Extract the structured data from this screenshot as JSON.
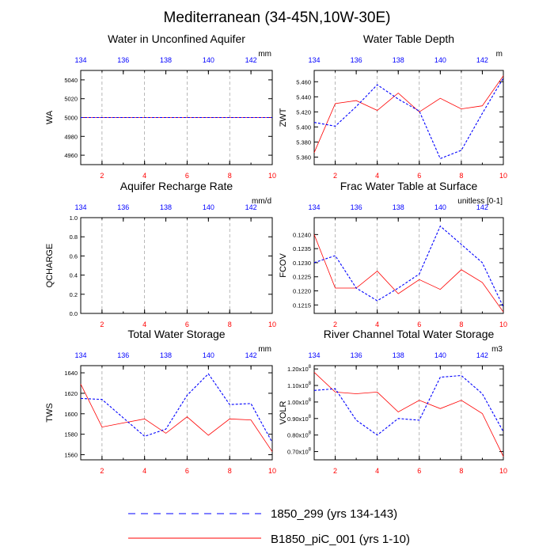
{
  "page": {
    "title": "Mediterranean (34-45N,10W-30E)",
    "colors": {
      "series_a": "#0000ff",
      "series_b": "#ff0000",
      "axis": "#000000",
      "grid": "#999999"
    }
  },
  "legend": {
    "items": [
      {
        "name": "1850_299 (yrs 134-143)",
        "color": "#0000ff",
        "style": "dashed"
      },
      {
        "name": "B1850_piC_001 (yrs 1-10)",
        "color": "#ff0000",
        "style": "solid"
      }
    ]
  },
  "chart_data": [
    {
      "type": "line",
      "title": "Water in Unconfined Aquifer",
      "ylabel": "WA",
      "units": "mm",
      "xlim": [
        1,
        10
      ],
      "x_ticks": [
        2,
        4,
        6,
        8,
        10
      ],
      "top_xlim": [
        134,
        143
      ],
      "top_ticks": [
        134,
        136,
        138,
        140,
        142
      ],
      "ylim": [
        4950,
        5050
      ],
      "y_ticks": [
        4960,
        4980,
        5000,
        5020,
        5040
      ],
      "y_tick_labels": [
        "4960",
        "4980",
        "5000",
        "5020",
        "5040"
      ],
      "x": [
        1,
        2,
        3,
        4,
        5,
        6,
        7,
        8,
        9,
        10
      ],
      "series": [
        {
          "name": "1850_299 (yrs 134-143)",
          "values": [
            5000,
            5000,
            5000,
            5000,
            5000,
            5000,
            5000,
            5000,
            5000,
            5000
          ]
        },
        {
          "name": "B1850_piC_001 (yrs 1-10)",
          "values": [
            5000,
            5000,
            5000,
            5000,
            5000,
            5000,
            5000,
            5000,
            5000,
            5000
          ]
        }
      ]
    },
    {
      "type": "line",
      "title": "Water Table Depth",
      "ylabel": "ZWT",
      "units": "m",
      "xlim": [
        1,
        10
      ],
      "x_ticks": [
        2,
        4,
        6,
        8,
        10
      ],
      "top_xlim": [
        134,
        143
      ],
      "top_ticks": [
        134,
        136,
        138,
        140,
        142
      ],
      "ylim": [
        5.35,
        5.475
      ],
      "y_ticks": [
        5.36,
        5.38,
        5.4,
        5.42,
        5.44,
        5.46
      ],
      "y_tick_labels": [
        "5.360",
        "5.380",
        "5.400",
        "5.420",
        "5.440",
        "5.460"
      ],
      "x": [
        1,
        2,
        3,
        4,
        5,
        6,
        7,
        8,
        9,
        10
      ],
      "series": [
        {
          "name": "1850_299 (yrs 134-143)",
          "values": [
            5.406,
            5.401,
            5.427,
            5.456,
            5.437,
            5.421,
            5.358,
            5.369,
            5.418,
            5.465
          ]
        },
        {
          "name": "B1850_piC_001 (yrs 1-10)",
          "values": [
            5.366,
            5.431,
            5.435,
            5.422,
            5.445,
            5.42,
            5.438,
            5.424,
            5.428,
            5.468
          ]
        }
      ]
    },
    {
      "type": "line",
      "title": "Aquifer Recharge Rate",
      "ylabel": "QCHARGE",
      "units": "mm/d",
      "xlim": [
        1,
        10
      ],
      "x_ticks": [
        2,
        4,
        6,
        8,
        10
      ],
      "top_xlim": [
        134,
        143
      ],
      "top_ticks": [
        134,
        136,
        138,
        140,
        142
      ],
      "ylim": [
        0,
        1
      ],
      "y_ticks": [
        0,
        0.2,
        0.4,
        0.6,
        0.8,
        1.0
      ],
      "y_tick_labels": [
        "0.0",
        "0.2",
        "0.4",
        "0.6",
        "0.8",
        "1.0"
      ],
      "x": [
        1,
        2,
        3,
        4,
        5,
        6,
        7,
        8,
        9,
        10
      ],
      "series": []
    },
    {
      "type": "line",
      "title": "Frac Water Table at Surface",
      "ylabel": "FCOV",
      "units": "unitless [0-1]",
      "xlim": [
        1,
        10
      ],
      "x_ticks": [
        2,
        4,
        6,
        8,
        10
      ],
      "top_xlim": [
        134,
        143
      ],
      "top_ticks": [
        134,
        136,
        138,
        140,
        142
      ],
      "ylim": [
        0.1212,
        0.1246
      ],
      "y_ticks": [
        0.1215,
        0.122,
        0.1225,
        0.123,
        0.1235,
        0.124
      ],
      "y_tick_labels": [
        "0.1215",
        "0.1220",
        "0.1225",
        "0.1230",
        "0.1235",
        "0.1240"
      ],
      "x": [
        1,
        2,
        3,
        4,
        5,
        6,
        7,
        8,
        9,
        10
      ],
      "series": [
        {
          "name": "1850_299 (yrs 134-143)",
          "values": [
            0.123,
            0.12325,
            0.1221,
            0.12165,
            0.1221,
            0.1226,
            0.1243,
            0.12365,
            0.123,
            0.12143
          ]
        },
        {
          "name": "B1850_piC_001 (yrs 1-10)",
          "values": [
            0.124,
            0.1221,
            0.1221,
            0.1227,
            0.1219,
            0.1224,
            0.12205,
            0.12275,
            0.1223,
            0.12125
          ]
        }
      ]
    },
    {
      "type": "line",
      "title": "Total Water Storage",
      "ylabel": "TWS",
      "units": "mm",
      "xlim": [
        1,
        10
      ],
      "x_ticks": [
        2,
        4,
        6,
        8,
        10
      ],
      "top_xlim": [
        134,
        143
      ],
      "top_ticks": [
        134,
        136,
        138,
        140,
        142
      ],
      "ylim": [
        1555,
        1647
      ],
      "y_ticks": [
        1560,
        1580,
        1600,
        1620,
        1640
      ],
      "y_tick_labels": [
        "1560",
        "1580",
        "1600",
        "1620",
        "1640"
      ],
      "x": [
        1,
        2,
        3,
        4,
        5,
        6,
        7,
        8,
        9,
        10
      ],
      "series": [
        {
          "name": "1850_299 (yrs 134-143)",
          "values": [
            1615,
            1614,
            1596,
            1578,
            1585,
            1618,
            1639,
            1609,
            1610,
            1572
          ]
        },
        {
          "name": "B1850_piC_001 (yrs 1-10)",
          "values": [
            1629,
            1587,
            1591,
            1595,
            1581,
            1597,
            1579,
            1595,
            1594,
            1563
          ]
        }
      ]
    },
    {
      "type": "line",
      "title": "River Channel Total Water Storage",
      "ylabel": "VOLR",
      "units": "m3",
      "y_exponent": "8",
      "xlim": [
        1,
        10
      ],
      "x_ticks": [
        2,
        4,
        6,
        8,
        10
      ],
      "top_xlim": [
        134,
        143
      ],
      "top_ticks": [
        134,
        136,
        138,
        140,
        142
      ],
      "ylim": [
        0.65,
        1.22
      ],
      "y_ticks": [
        0.7,
        0.8,
        0.9,
        1.0,
        1.1,
        1.2
      ],
      "y_tick_labels": [
        "0.70x10",
        "0.80x10",
        "0.90x10",
        "1.00x10",
        "1.10x10",
        "1.20x10"
      ],
      "x": [
        1,
        2,
        3,
        4,
        5,
        6,
        7,
        8,
        9,
        10
      ],
      "series": [
        {
          "name": "1850_299 (yrs 134-143)",
          "values": [
            1.07,
            1.08,
            0.89,
            0.8,
            0.9,
            0.89,
            1.15,
            1.16,
            1.05,
            0.82
          ]
        },
        {
          "name": "B1850_piC_001 (yrs 1-10)",
          "values": [
            1.18,
            1.06,
            1.05,
            1.06,
            0.94,
            1.01,
            0.96,
            1.01,
            0.93,
            0.67
          ]
        }
      ]
    }
  ]
}
